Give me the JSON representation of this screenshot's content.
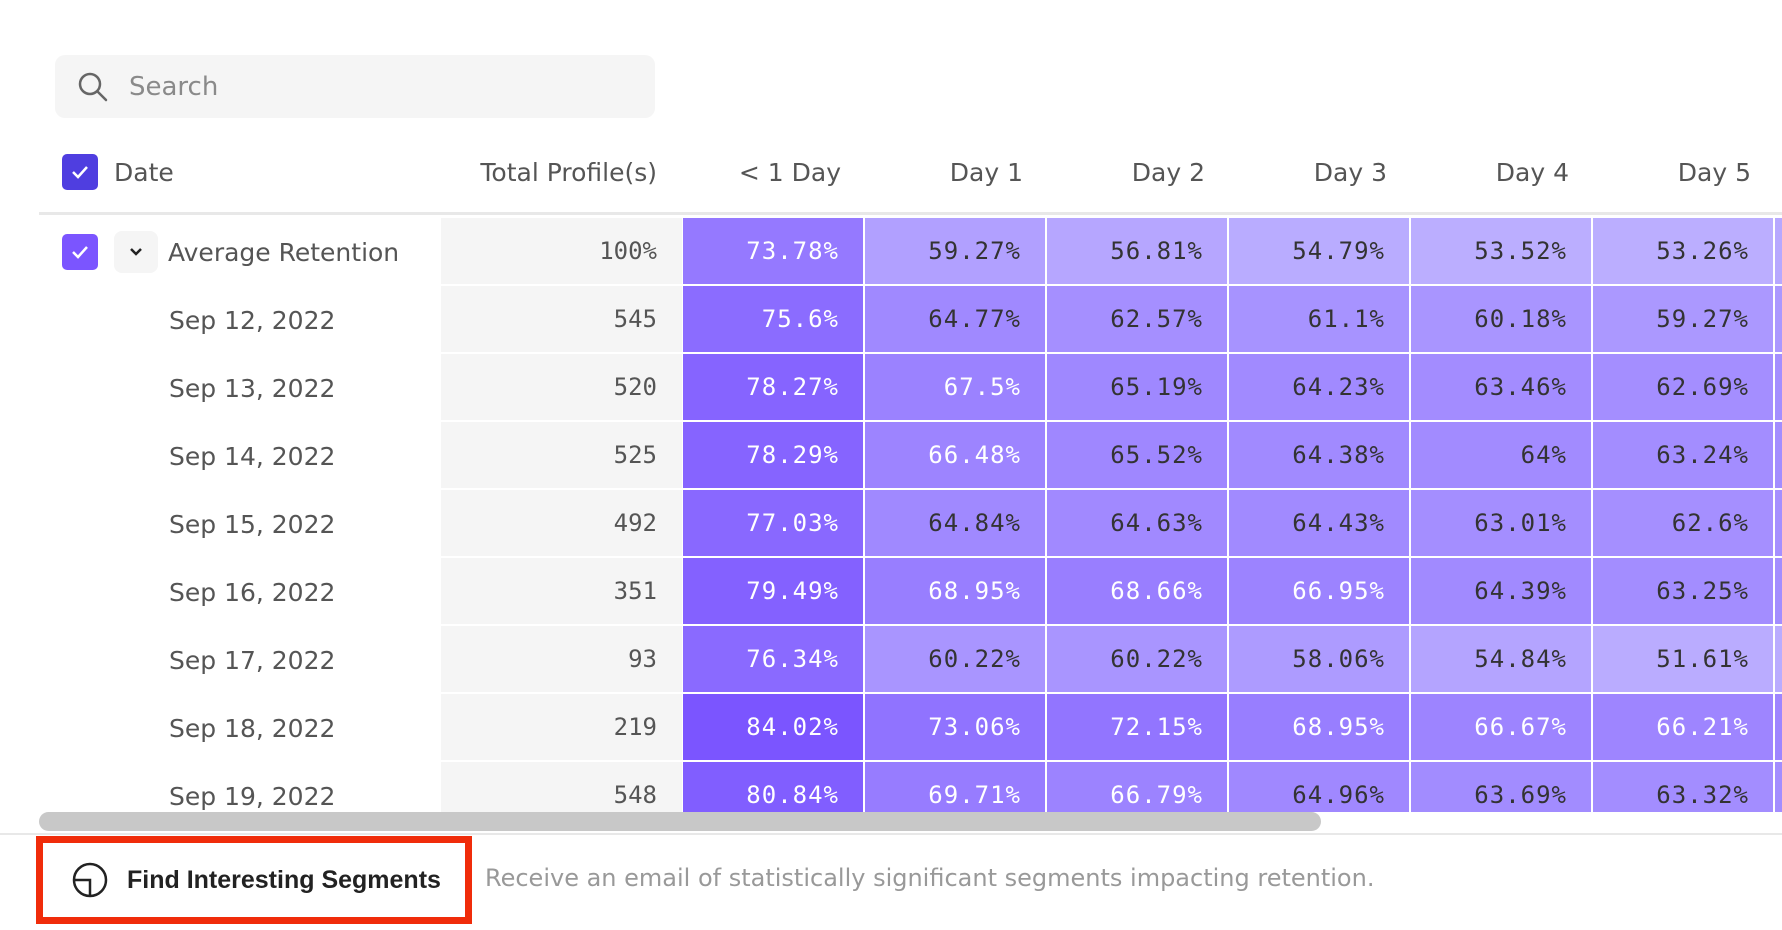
{
  "search": {
    "placeholder": "Search",
    "value": ""
  },
  "table": {
    "headers": {
      "date": "Date",
      "total": "Total Profile(s)",
      "days": [
        "< 1 Day",
        "Day 1",
        "Day 2",
        "Day 3",
        "Day 4",
        "Day 5"
      ]
    },
    "average": {
      "label": "Average Retention",
      "total": "100%",
      "values": [
        "73.78%",
        "59.27%",
        "56.81%",
        "54.79%",
        "53.52%",
        "53.26%"
      ]
    },
    "rows": [
      {
        "date": "Sep 12, 2022",
        "total": "545",
        "values": [
          "75.6%",
          "64.77%",
          "62.57%",
          "61.1%",
          "60.18%",
          "59.27%"
        ]
      },
      {
        "date": "Sep 13, 2022",
        "total": "520",
        "values": [
          "78.27%",
          "67.5%",
          "65.19%",
          "64.23%",
          "63.46%",
          "62.69%"
        ]
      },
      {
        "date": "Sep 14, 2022",
        "total": "525",
        "values": [
          "78.29%",
          "66.48%",
          "65.52%",
          "64.38%",
          "64%",
          "63.24%"
        ]
      },
      {
        "date": "Sep 15, 2022",
        "total": "492",
        "values": [
          "77.03%",
          "64.84%",
          "64.63%",
          "64.43%",
          "63.01%",
          "62.6%"
        ]
      },
      {
        "date": "Sep 16, 2022",
        "total": "351",
        "values": [
          "79.49%",
          "68.95%",
          "68.66%",
          "66.95%",
          "64.39%",
          "63.25%"
        ]
      },
      {
        "date": "Sep 17, 2022",
        "total": "93",
        "values": [
          "76.34%",
          "60.22%",
          "60.22%",
          "58.06%",
          "54.84%",
          "51.61%"
        ]
      },
      {
        "date": "Sep 18, 2022",
        "total": "219",
        "values": [
          "84.02%",
          "73.06%",
          "72.15%",
          "68.95%",
          "66.67%",
          "66.21%"
        ]
      },
      {
        "date": "Sep 19, 2022",
        "total": "548",
        "values": [
          "80.84%",
          "69.71%",
          "66.79%",
          "64.96%",
          "63.69%",
          "63.32%"
        ]
      }
    ]
  },
  "footer": {
    "button_label": "Find Interesting Segments",
    "description": "Receive an email of statistically significant segments impacting retention."
  },
  "colors": {
    "accent": "#4f3ee0",
    "checkbox": "#7b55ff",
    "heat_high": "#7b55ff",
    "heat_low": "#bbaeff",
    "highlight": "#f02c0a"
  },
  "icons": {
    "search": "search-icon",
    "check": "check-icon",
    "chevron": "chevron-down-icon",
    "segments": "segments-icon"
  }
}
